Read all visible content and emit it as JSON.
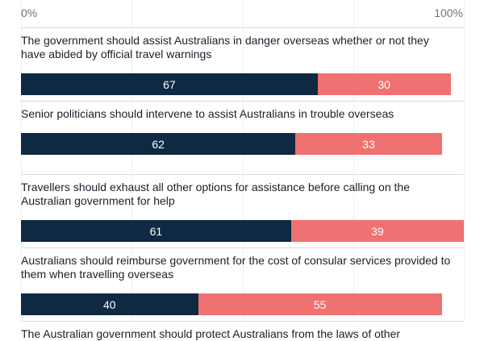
{
  "chart_data": {
    "type": "bar",
    "orientation": "horizontal",
    "stacked": true,
    "xlim": [
      0,
      100
    ],
    "x_tick_labels": [
      "0%",
      "100%"
    ],
    "colors": {
      "first": "#0f2942",
      "second": "#f07171"
    },
    "categories": [
      "The government should assist Australians in danger overseas whether or not they have abided by official travel warnings",
      "Senior politicians should intervene to assist Australians in trouble overseas",
      "Travellers should exhaust all other options for assistance before calling on the Australian government for help",
      "Australians should reimburse government for the cost of consular services provided to them when travelling overseas",
      "The Australian government should protect Australians from the laws of other"
    ],
    "series": [
      {
        "values": [
          67,
          62,
          61,
          40,
          null
        ]
      },
      {
        "values": [
          30,
          33,
          39,
          55,
          null
        ]
      }
    ]
  }
}
